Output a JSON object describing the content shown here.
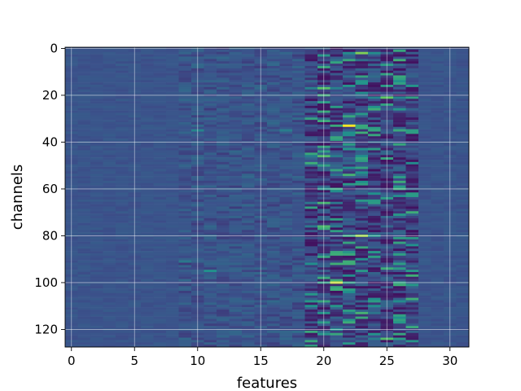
{
  "chart_data": {
    "type": "heatmap",
    "title": "",
    "xlabel": "features",
    "ylabel": "channels",
    "n_cols": 32,
    "n_rows": 128,
    "xlim": [
      -0.5,
      31.5
    ],
    "ylim": [
      127.5,
      -0.5
    ],
    "x_ticks": [
      0,
      5,
      10,
      15,
      20,
      25,
      30
    ],
    "y_ticks": [
      0,
      20,
      40,
      60,
      80,
      100,
      120
    ],
    "grid": true,
    "colormap": "viridis",
    "colors": {
      "background": "#3b528b",
      "dark": "#440154",
      "mid": "#21918c",
      "bright": "#fde725"
    },
    "notable_cells": [
      {
        "x": 22,
        "y": 33,
        "level": 1.0
      },
      {
        "x": 21,
        "y": 100,
        "level": 0.92
      },
      {
        "x": 23,
        "y": 80,
        "level": 0.85
      },
      {
        "x": 23,
        "y": 2,
        "level": 0.8
      },
      {
        "x": 25,
        "y": 21,
        "level": 0.75
      },
      {
        "x": 20,
        "y": 17,
        "level": 0.72
      },
      {
        "x": 20,
        "y": 46,
        "level": 0.7
      },
      {
        "x": 25,
        "y": 124,
        "level": 0.7
      },
      {
        "x": 20,
        "y": 76,
        "level": 0.68
      },
      {
        "x": 20,
        "y": 66,
        "level": 0.66
      },
      {
        "x": 22,
        "y": 54,
        "level": 0.65
      },
      {
        "x": 23,
        "y": 113,
        "level": 0.65
      },
      {
        "x": 21,
        "y": 88,
        "level": 0.62
      },
      {
        "x": 22,
        "y": 5,
        "level": 0.6
      },
      {
        "x": 19,
        "y": 30,
        "level": 0.58
      },
      {
        "x": 23,
        "y": 12,
        "level": 0.58
      },
      {
        "x": 20,
        "y": 50,
        "level": 0.56
      },
      {
        "x": 21,
        "y": 73,
        "level": 0.56
      },
      {
        "x": 24,
        "y": 108,
        "level": 0.55
      },
      {
        "x": 26,
        "y": 26,
        "level": 0.52
      },
      {
        "x": 24,
        "y": 62,
        "level": 0.5
      },
      {
        "x": 26,
        "y": 41,
        "level": 0.5
      },
      {
        "x": 11,
        "y": 95,
        "level": 0.5
      },
      {
        "x": 10,
        "y": 35,
        "level": 0.45
      },
      {
        "x": 17,
        "y": 35,
        "level": 0.42
      },
      {
        "x": 19,
        "y": 121,
        "level": 0.6
      },
      {
        "x": 25,
        "y": 7,
        "level": 0.55
      },
      {
        "x": 9,
        "y": 91,
        "level": 0.4
      }
    ]
  }
}
